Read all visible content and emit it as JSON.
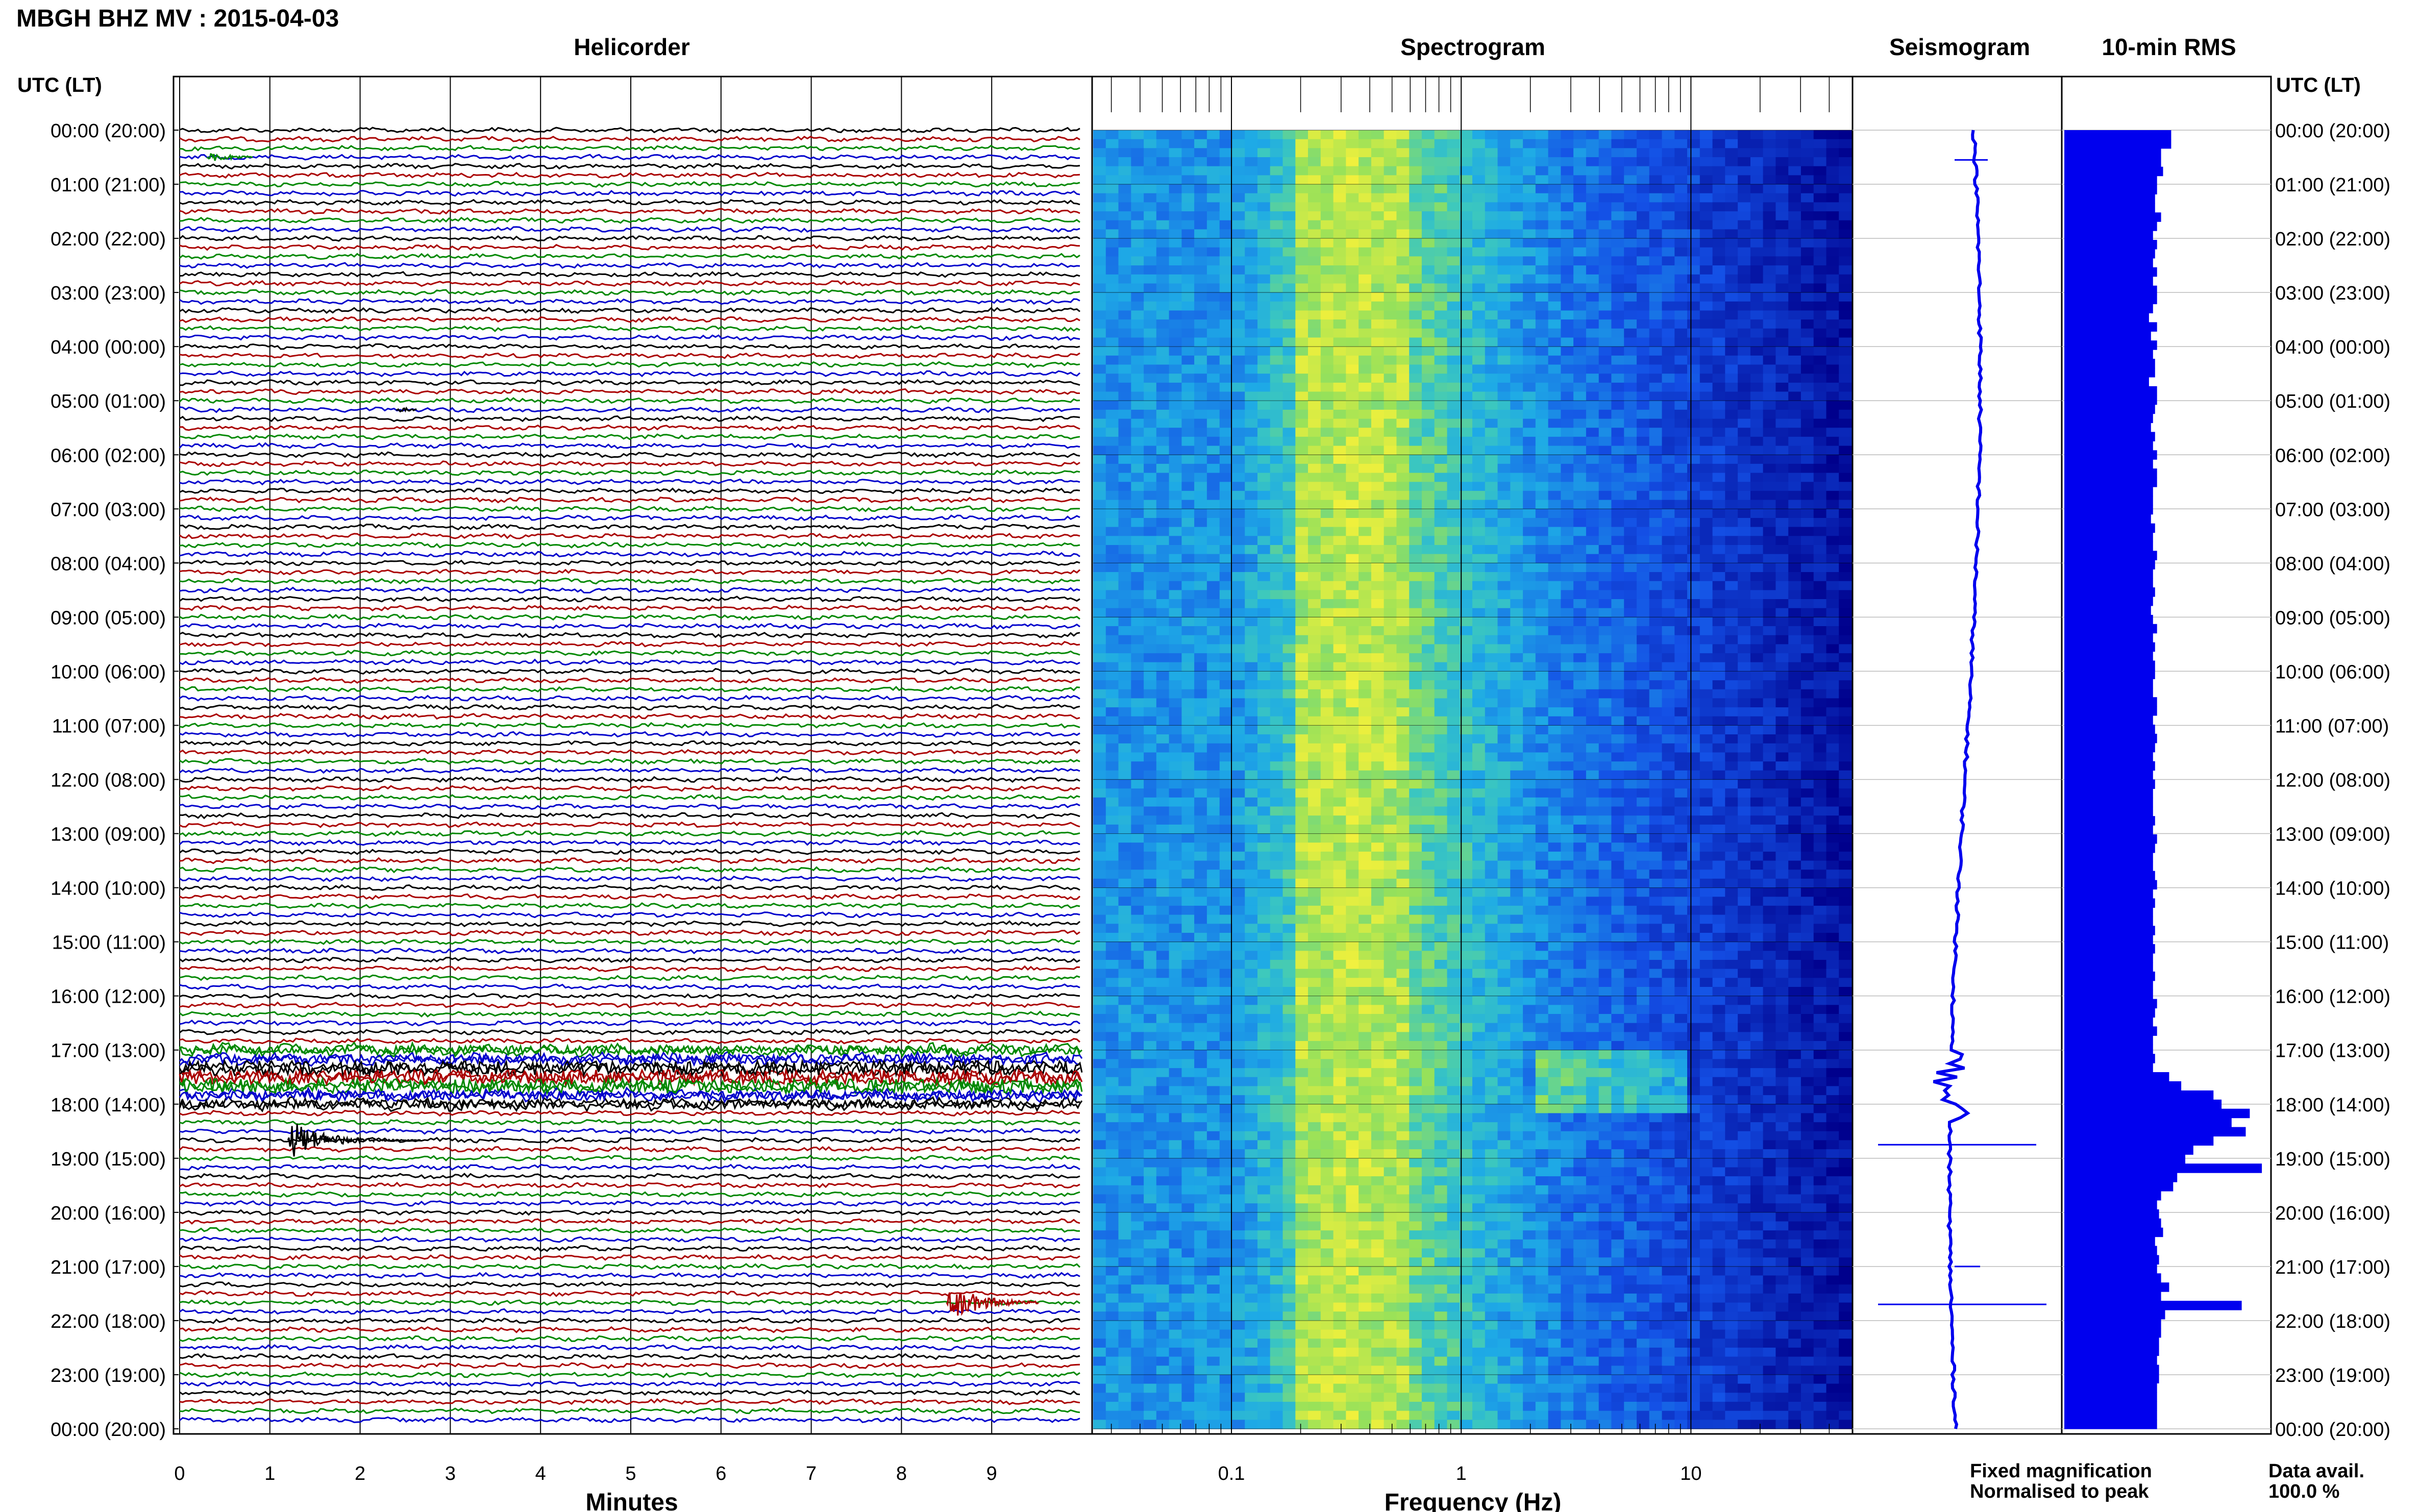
{
  "header": {
    "station_title": "MBGH BHZ MV : 2015-04-03",
    "utc_label_left": "UTC (LT)",
    "utc_label_right": "UTC (LT)"
  },
  "panels": {
    "helicorder": "Helicorder",
    "spectrogram": "Spectrogram",
    "seismogram": "Seismogram",
    "rms": "10-min RMS"
  },
  "axes": {
    "minutes_label": "Minutes",
    "frequency_label": "Frequency (Hz)"
  },
  "footer": {
    "fixed_magnification": "Fixed magnification",
    "normalised_to_peak": "Normalised to peak",
    "data_avail_label": "Data avail.",
    "data_avail_value": "100.0 %"
  },
  "colors": {
    "trace_cycle": [
      "#000000",
      "#aa0000",
      "#008800",
      "#0000cc"
    ],
    "rms_bar": "#0000ee",
    "seismogram": "#0000ee",
    "fixed_magnification_text": "#0000ff",
    "normalised_text": "#dd0000"
  },
  "chart_data": {
    "type": "heatmap",
    "time_labels": [
      "00:00 (20:00)",
      "01:00 (21:00)",
      "02:00 (22:00)",
      "03:00 (23:00)",
      "04:00 (00:00)",
      "05:00 (01:00)",
      "06:00 (02:00)",
      "07:00 (03:00)",
      "08:00 (04:00)",
      "09:00 (05:00)",
      "10:00 (06:00)",
      "11:00 (07:00)",
      "12:00 (08:00)",
      "13:00 (09:00)",
      "14:00 (10:00)",
      "15:00 (11:00)",
      "16:00 (12:00)",
      "17:00 (13:00)",
      "18:00 (14:00)",
      "19:00 (15:00)",
      "20:00 (16:00)",
      "21:00 (17:00)",
      "22:00 (18:00)",
      "23:00 (19:00)",
      "00:00 (20:00)"
    ],
    "minute_ticks": [
      "0",
      "1",
      "2",
      "3",
      "4",
      "5",
      "6",
      "7",
      "8",
      "9"
    ],
    "minutes_range": [
      0,
      10
    ],
    "frequency_ticks": [
      "0.1",
      "1",
      "10"
    ],
    "frequency_range": [
      0.025,
      50
    ],
    "frequency_scale": "log",
    "events": [
      {
        "utc": "00:30",
        "minute": 0.3
      },
      {
        "utc": "05:10",
        "minute": 2.4
      },
      {
        "utc": "17:00-18:10",
        "minute": 0
      },
      {
        "utc": "18:40",
        "minute": 1.2
      },
      {
        "utc": "21:40",
        "minute": 8.5
      }
    ],
    "rms_10min": [
      0.53,
      0.53,
      0.48,
      0.48,
      0.49,
      0.46,
      0.46,
      0.45,
      0.45,
      0.48,
      0.46,
      0.44,
      0.46,
      0.45,
      0.44,
      0.46,
      0.44,
      0.46,
      0.46,
      0.44,
      0.42,
      0.46,
      0.43,
      0.46,
      0.44,
      0.45,
      0.45,
      0.42,
      0.46,
      0.46,
      0.45,
      0.44,
      0.43,
      0.45,
      0.44,
      0.46,
      0.44,
      0.46,
      0.46,
      0.44,
      0.44,
      0.44,
      0.43,
      0.45,
      0.44,
      0.44,
      0.46,
      0.45,
      0.44,
      0.44,
      0.45,
      0.44,
      0.43,
      0.44,
      0.46,
      0.44,
      0.45,
      0.44,
      0.45,
      0.45,
      0.44,
      0.44,
      0.46,
      0.46,
      0.44,
      0.45,
      0.46,
      0.45,
      0.44,
      0.45,
      0.44,
      0.45,
      0.44,
      0.44,
      0.44,
      0.45,
      0.44,
      0.46,
      0.45,
      0.44,
      0.44,
      0.45,
      0.46,
      0.44,
      0.45,
      0.44,
      0.44,
      0.45,
      0.44,
      0.45,
      0.44,
      0.44,
      0.45,
      0.44,
      0.44,
      0.46,
      0.45,
      0.44,
      0.46,
      0.44,
      0.44,
      0.45,
      0.44,
      0.52,
      0.58,
      0.74,
      0.78,
      0.92,
      0.83,
      0.9,
      0.74,
      0.64,
      0.6,
      0.98,
      0.56,
      0.54,
      0.48,
      0.46,
      0.47,
      0.48,
      0.49,
      0.45,
      0.46,
      0.47,
      0.46,
      0.48,
      0.52,
      0.48,
      0.88,
      0.5,
      0.48,
      0.48,
      0.47,
      0.47,
      0.46,
      0.47,
      0.47,
      0.46,
      0.46,
      0.46,
      0.46,
      0.46
    ]
  }
}
